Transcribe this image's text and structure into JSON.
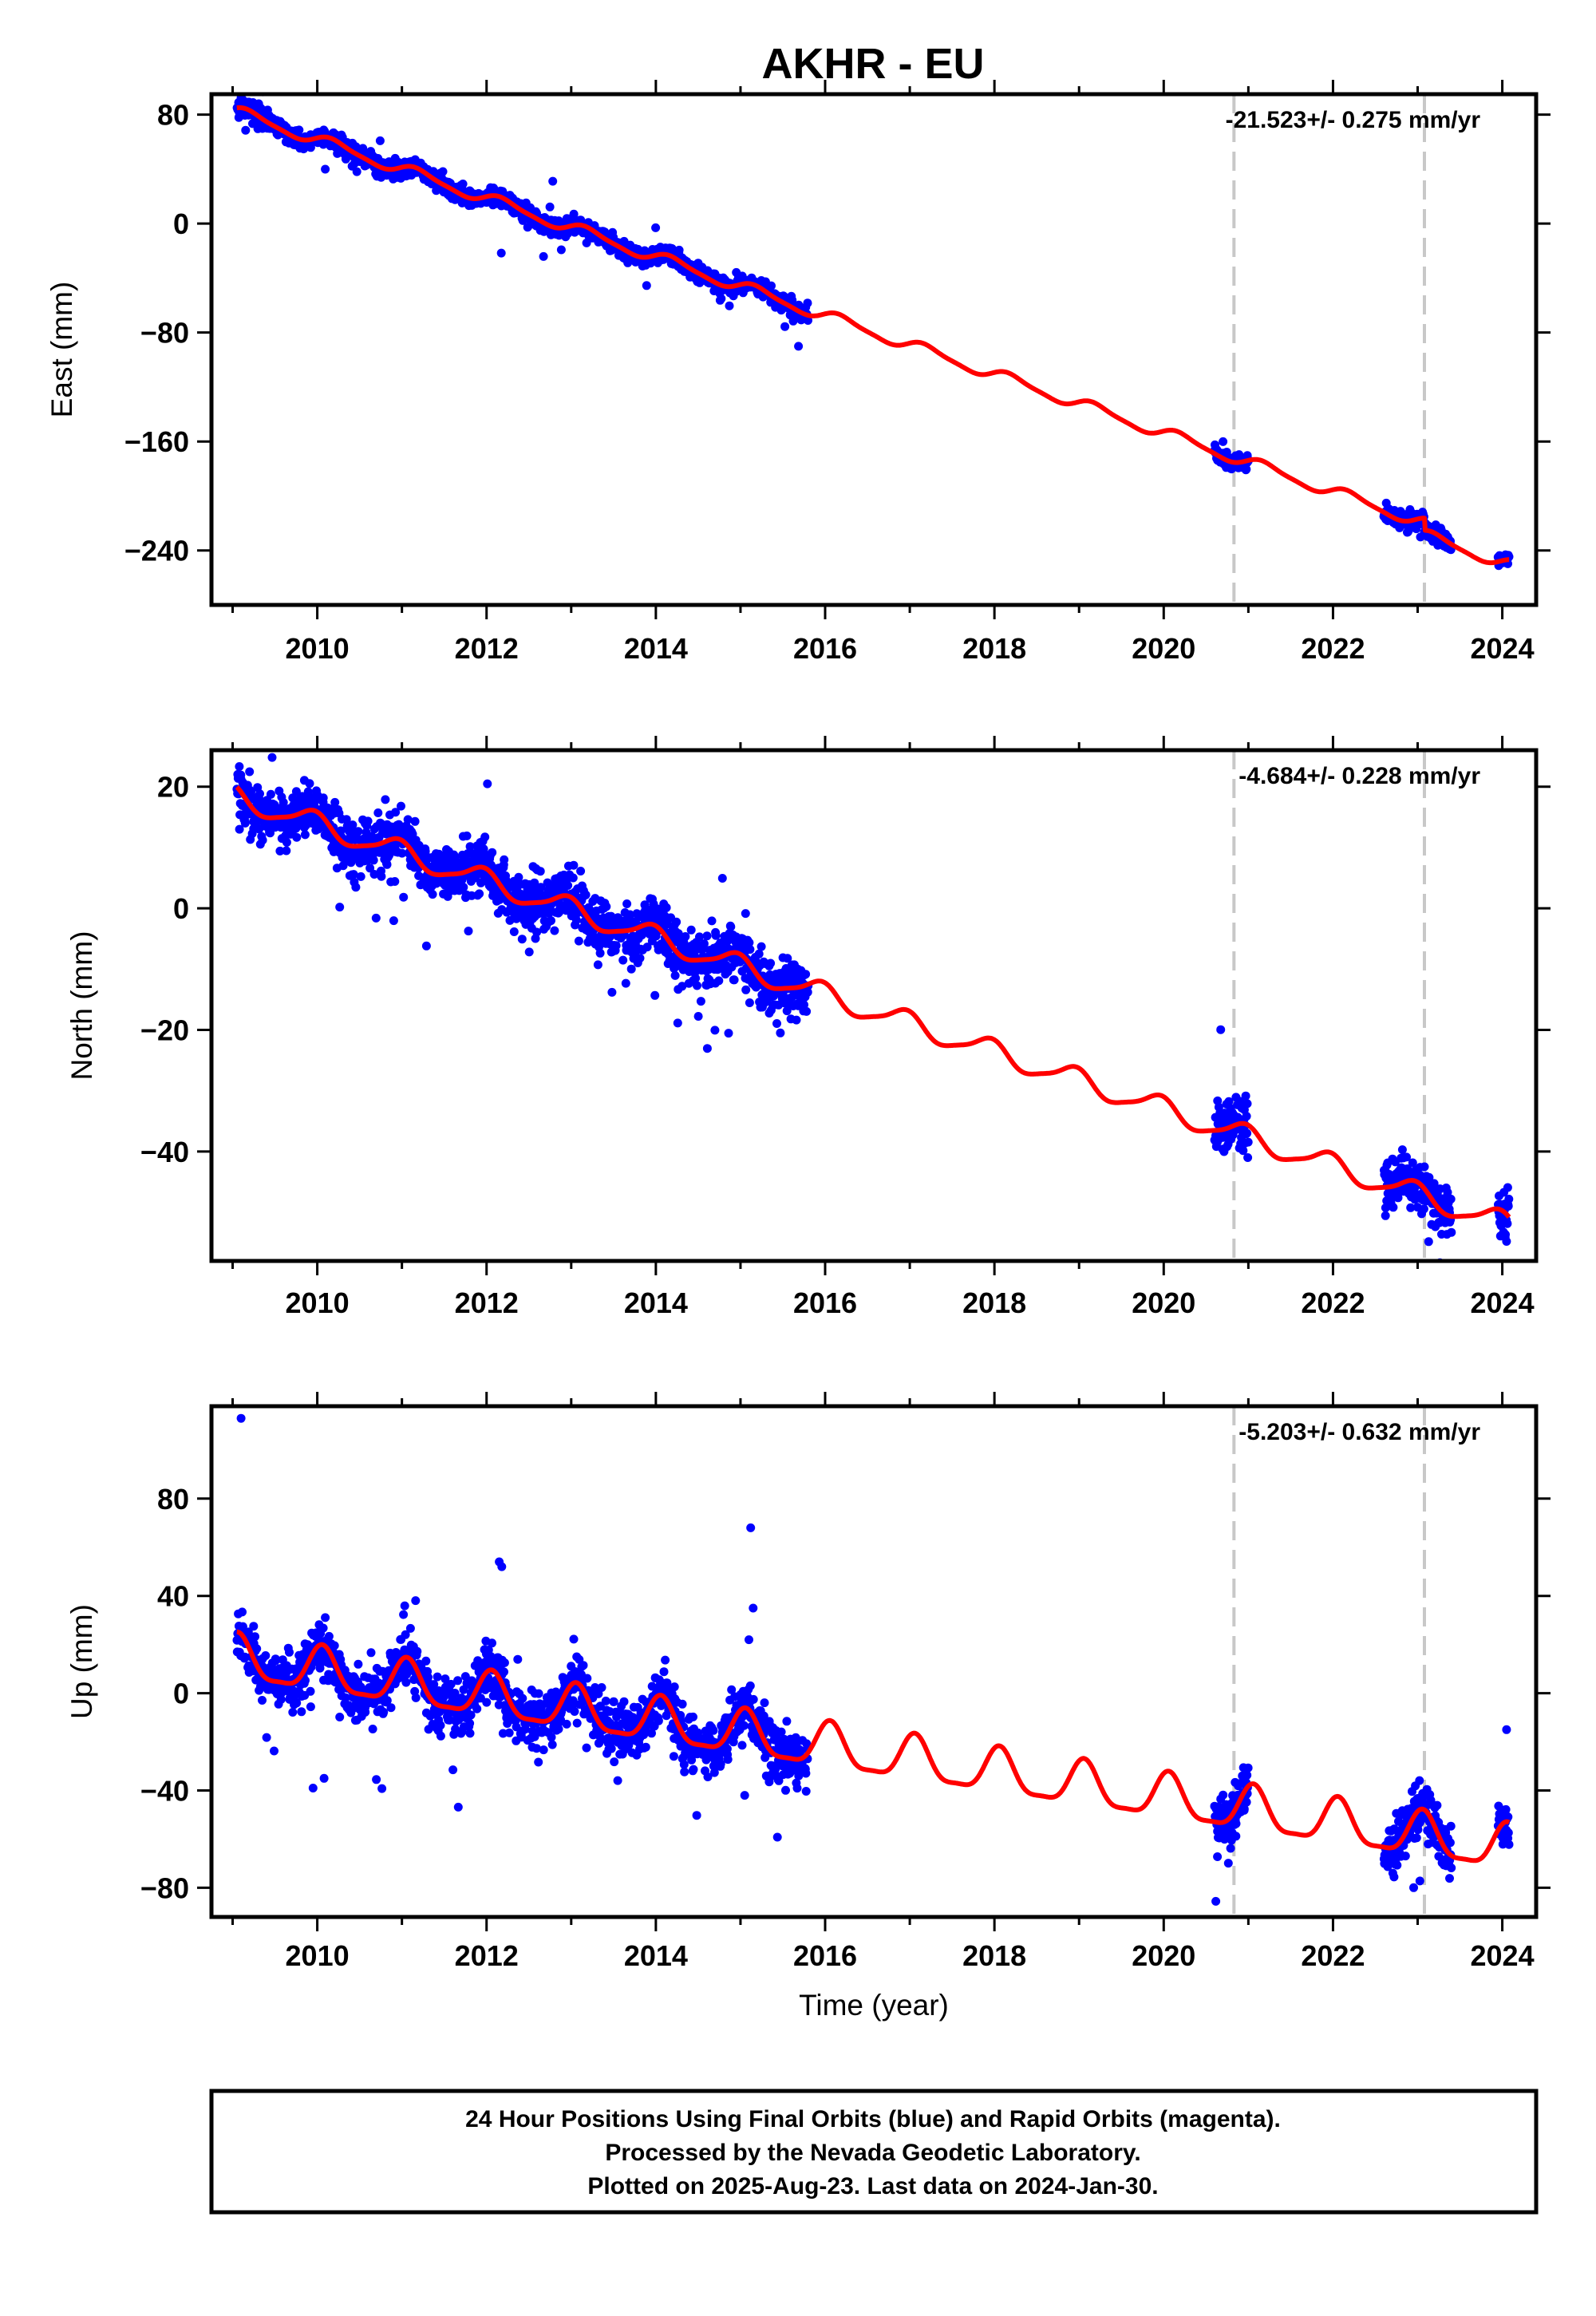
{
  "title": "AKHR - EU",
  "colors": {
    "final": "#0000ff",
    "model": "#ff0000",
    "event": "#c8c8c8",
    "frame": "#000000"
  },
  "footer": {
    "lines": [
      "24 Hour Positions Using Final Orbits (blue) and Rapid Orbits (magenta).",
      "Processed by the Nevada Geodetic Laboratory.",
      "Plotted on 2025-Aug-23. Last data on 2024-Jan-30."
    ]
  },
  "chart_data": [
    {
      "type": "scatter",
      "name": "east",
      "ylabel": "East (mm)",
      "xlabel": "",
      "rate_label": "-21.523+/- 0.275 mm/yr",
      "xlim": [
        2008.75,
        2024.4
      ],
      "ylim": [
        -280,
        95
      ],
      "yticks": [
        80,
        0,
        -80,
        -160,
        -240
      ],
      "xticks": [
        2010,
        2012,
        2014,
        2016,
        2018,
        2020,
        2022,
        2024
      ],
      "event_lines": [
        2020.83,
        2023.08
      ],
      "data_segments": [
        [
          2009.05,
          2015.8
        ],
        [
          2020.6,
          2021.0
        ],
        [
          2022.6,
          2023.4
        ],
        [
          2023.95,
          2024.08
        ]
      ],
      "model": {
        "intercept": 83.0,
        "t0": 2009.0,
        "rate": -21.523,
        "ann_amp": 4.0,
        "semi_amp": 1.0,
        "phase": 0.3,
        "offsets": [
          {
            "t": 2023.08,
            "dy": -9
          }
        ]
      },
      "scatter": 3.2,
      "outlier_rate": 0.01,
      "outlier_scale": 14
    },
    {
      "type": "scatter",
      "name": "north",
      "ylabel": "North (mm)",
      "xlabel": "",
      "rate_label": "-4.684+/- 0.228 mm/yr",
      "xlim": [
        2008.75,
        2024.4
      ],
      "ylim": [
        -58,
        26
      ],
      "yticks": [
        20,
        0,
        -20,
        -40
      ],
      "xticks": [
        2010,
        2012,
        2014,
        2016,
        2018,
        2020,
        2022,
        2024
      ],
      "event_lines": [
        2020.83,
        2023.08
      ],
      "data_segments": [
        [
          2009.05,
          2015.8
        ],
        [
          2020.6,
          2021.0
        ],
        [
          2022.6,
          2023.4
        ],
        [
          2023.95,
          2024.08
        ]
      ],
      "model": {
        "intercept": 18.5,
        "t0": 2009.0,
        "rate": -4.684,
        "ann_amp": 1.8,
        "semi_amp": 0.4,
        "phase": 2.0,
        "offsets": []
      },
      "scatter": 2.2,
      "outlier_rate": 0.03,
      "outlier_scale": 8
    },
    {
      "type": "scatter",
      "name": "up",
      "ylabel": "Up (mm)",
      "xlabel": "Time (year)",
      "rate_label": "-5.203+/- 0.632 mm/yr",
      "xlim": [
        2008.75,
        2024.4
      ],
      "ylim": [
        -92,
        118
      ],
      "yticks": [
        80,
        40,
        0,
        -40,
        -80
      ],
      "xticks": [
        2010,
        2012,
        2014,
        2016,
        2018,
        2020,
        2022,
        2024
      ],
      "event_lines": [
        2020.83,
        2023.08
      ],
      "data_segments": [
        [
          2009.05,
          2015.8
        ],
        [
          2020.6,
          2021.0
        ],
        [
          2022.6,
          2023.4
        ],
        [
          2023.95,
          2024.08
        ]
      ],
      "model": {
        "intercept": 14.0,
        "t0": 2009.0,
        "rate": -5.203,
        "ann_amp": 9.0,
        "semi_amp": 2.5,
        "phase": 1.2,
        "offsets": []
      },
      "scatter": 5.5,
      "outlier_rate": 0.02,
      "outlier_scale": 22,
      "highlight_points": [
        [
          2009.1,
          113
        ],
        [
          2012.15,
          54
        ],
        [
          2012.18,
          52
        ],
        [
          2015.12,
          68
        ],
        [
          2015.15,
          35
        ],
        [
          2015.1,
          22
        ],
        [
          2009.95,
          -39
        ],
        [
          2010.08,
          -35
        ],
        [
          2024.05,
          -15
        ],
        [
          2015.05,
          -42
        ]
      ]
    }
  ]
}
